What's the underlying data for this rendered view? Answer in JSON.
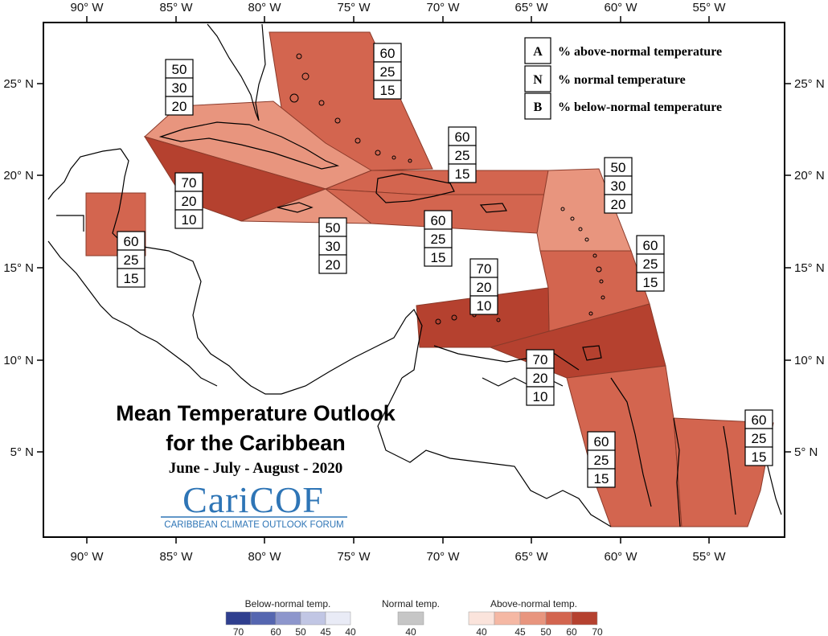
{
  "axes": {
    "longitudes": [
      "90° W",
      "85° W",
      "80° W",
      "75° W",
      "70° W",
      "65° W",
      "60° W",
      "55° W"
    ],
    "latitudes": [
      "25° N",
      "20° N",
      "15° N",
      "10° N",
      "5° N"
    ]
  },
  "legend": {
    "items": [
      {
        "key": "A",
        "text": "% above-normal temperature"
      },
      {
        "key": "N",
        "text": "% normal temperature"
      },
      {
        "key": "B",
        "text": "% below-normal temperature"
      }
    ]
  },
  "title": {
    "line1": "Mean Temperature Outlook",
    "line2": "for the Caribbean",
    "season": "June - July - August - 2020"
  },
  "logo": {
    "wordmark": "CariCOF",
    "tagline": "CARIBBEAN CLIMATE OUTLOOK FORUM"
  },
  "regions": [
    {
      "id": "bahamas",
      "above": 60,
      "normal": 25,
      "below": 15,
      "color": "#d3654f"
    },
    {
      "id": "cuba-west-north",
      "above": 50,
      "normal": 30,
      "below": 20,
      "color": "#e8957e"
    },
    {
      "id": "cuba-south",
      "above": 70,
      "normal": 20,
      "below": 10,
      "color": "#b5412f"
    },
    {
      "id": "jamaica",
      "above": 50,
      "normal": 30,
      "below": 20,
      "color": "#e8957e"
    },
    {
      "id": "hispaniola-north",
      "above": 60,
      "normal": 25,
      "below": 15,
      "color": "#d3654f"
    },
    {
      "id": "hispaniola-pr",
      "above": 60,
      "normal": 25,
      "below": 15,
      "color": "#d3654f"
    },
    {
      "id": "leeward-islands",
      "above": 50,
      "normal": 30,
      "below": 20,
      "color": "#e8957e"
    },
    {
      "id": "windward-islands",
      "above": 60,
      "normal": 25,
      "below": 15,
      "color": "#d3654f"
    },
    {
      "id": "belize",
      "above": 60,
      "normal": 25,
      "below": 15,
      "color": "#d3654f"
    },
    {
      "id": "abc-islands",
      "above": 70,
      "normal": 20,
      "below": 10,
      "color": "#b5412f"
    },
    {
      "id": "trinidad",
      "above": 70,
      "normal": 20,
      "below": 10,
      "color": "#b5412f"
    },
    {
      "id": "guyana",
      "above": 60,
      "normal": 25,
      "below": 15,
      "color": "#d3654f"
    },
    {
      "id": "suriname-guiana",
      "above": 60,
      "normal": 25,
      "below": 15,
      "color": "#d3654f"
    }
  ],
  "scale": {
    "below": {
      "heading": "Below-normal temp.",
      "ticks": [
        "70",
        "60",
        "50",
        "45",
        "40"
      ],
      "colors": [
        "#2f3f8f",
        "#5566b0",
        "#8d96cc",
        "#c1c6e4",
        "#e9ebf6"
      ]
    },
    "normal": {
      "heading": "Normal temp.",
      "ticks": [
        "40"
      ],
      "colors": [
        "#c6c6c6"
      ]
    },
    "above": {
      "heading": "Above-normal temp.",
      "ticks": [
        "40",
        "45",
        "50",
        "60",
        "70"
      ],
      "colors": [
        "#fbe4dc",
        "#f5b8a4",
        "#e8957e",
        "#d3654f",
        "#b5412f"
      ]
    }
  }
}
